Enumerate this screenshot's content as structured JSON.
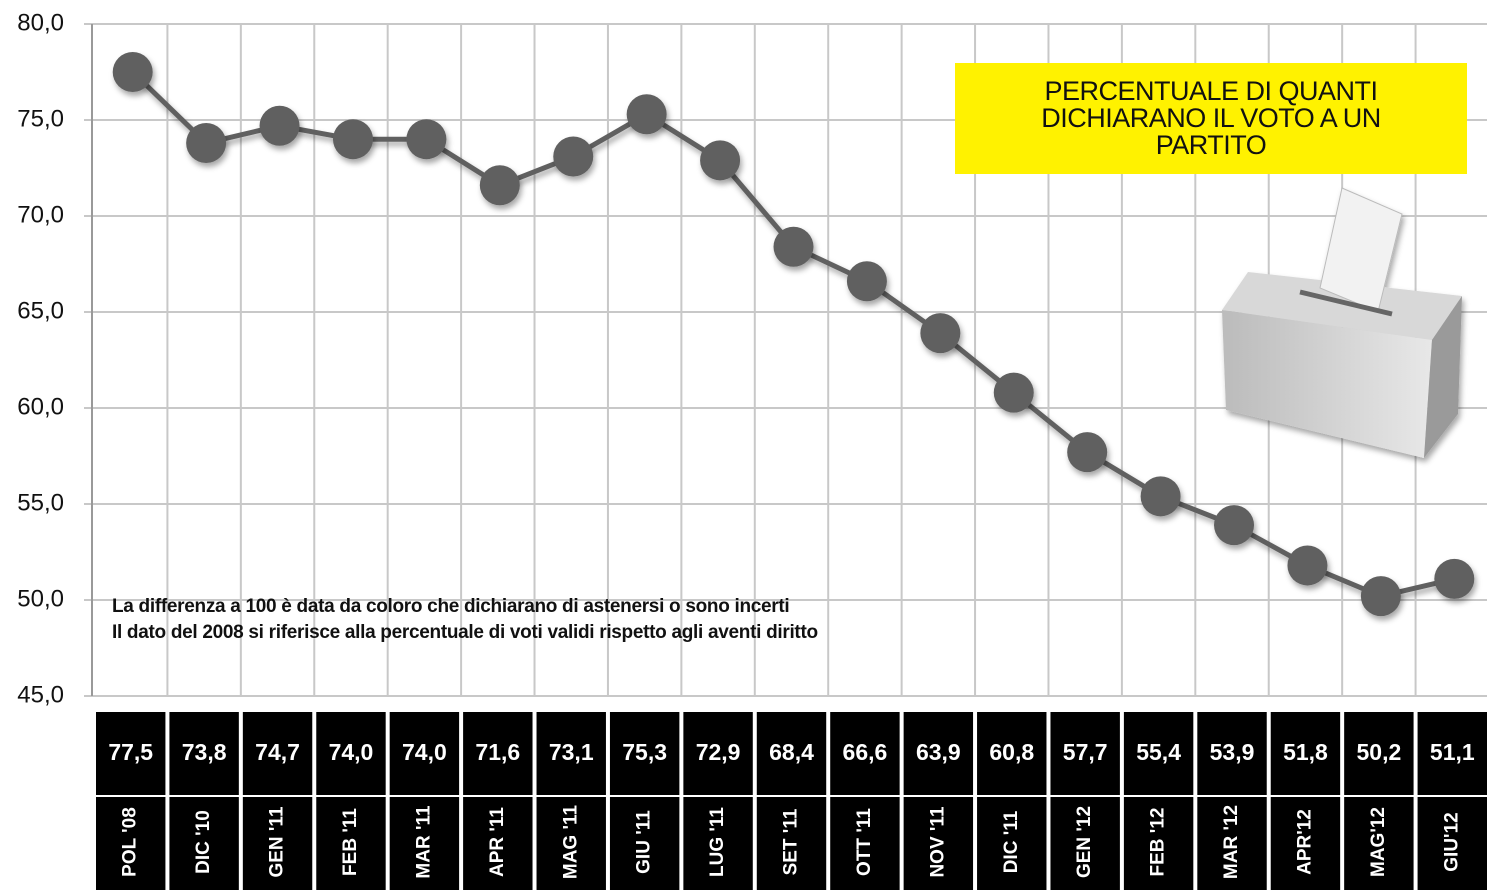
{
  "chart_data": {
    "type": "line",
    "title": "PERCENTUALE DI QUANTI DICHIARANO IL VOTO A UN PARTITO",
    "notes": [
      "La differenza a 100 è data da coloro che dichiarano di astenersi o sono incerti",
      "Il dato del 2008 si riferisce alla percentuale di voti validi rispetto agli aventi diritto"
    ],
    "categories": [
      "POL '08",
      "DIC '10",
      "GEN '11",
      "FEB '11",
      "MAR '11",
      "APR '11",
      "MAG '11",
      "GIU '11",
      "LUG '11",
      "SET '11",
      "OTT '11",
      "NOV '11",
      "DIC '11",
      "GEN '12",
      "FEB '12",
      "MAR '12",
      "APR'12",
      "MAG'12",
      "GIU'12"
    ],
    "values": [
      77.5,
      73.8,
      74.7,
      74.0,
      74.0,
      71.6,
      73.1,
      75.3,
      72.9,
      68.4,
      66.6,
      63.9,
      60.8,
      57.7,
      55.4,
      53.9,
      51.8,
      50.2,
      51.1
    ],
    "value_labels": [
      "77,5",
      "73,8",
      "74,7",
      "74,0",
      "74,0",
      "71,6",
      "73,1",
      "75,3",
      "72,9",
      "68,4",
      "66,6",
      "63,9",
      "60,8",
      "57,7",
      "55,4",
      "53,9",
      "51,8",
      "50,2",
      "51,1"
    ],
    "color": "#606060",
    "ylim": [
      45,
      80
    ],
    "yticks": [
      {
        "value": 45,
        "label": "45,0"
      },
      {
        "value": 50,
        "label": "50,0"
      },
      {
        "value": 55,
        "label": "55,0"
      },
      {
        "value": 60,
        "label": "60,0"
      },
      {
        "value": 65,
        "label": "65,0"
      },
      {
        "value": 70,
        "label": "70,0"
      },
      {
        "value": 75,
        "label": "75,0"
      },
      {
        "value": 80,
        "label": "80,0"
      }
    ],
    "grid": true
  }
}
